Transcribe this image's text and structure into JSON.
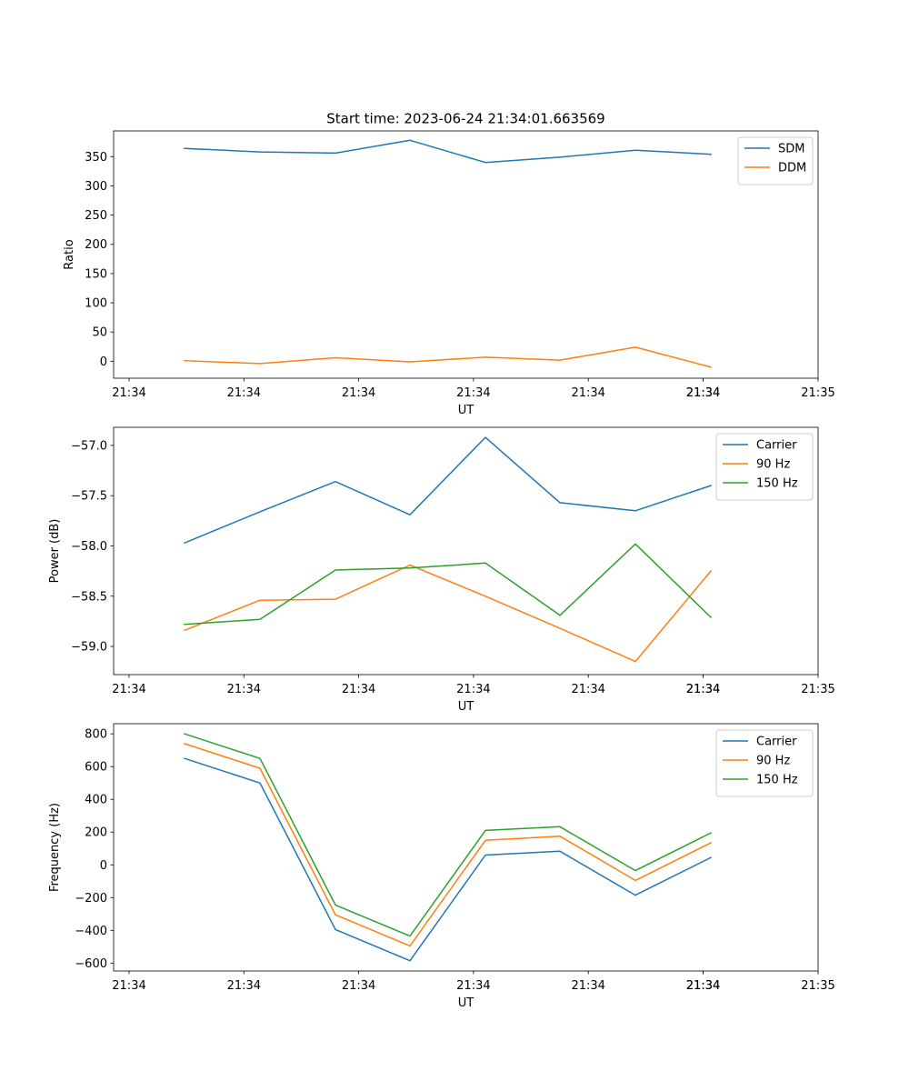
{
  "figure": {
    "title": "Start time: 2023-06-24 21:34:01.663569"
  },
  "colors": {
    "blue": "#1f77b4",
    "orange": "#ff7f0e",
    "green": "#2ca02c",
    "axes": "#000000",
    "legend_border": "#cccccc"
  },
  "x_axis": {
    "label": "UT",
    "tick_labels": [
      "21:34",
      "21:34",
      "21:34",
      "21:34",
      "21:34",
      "21:34",
      "21:34",
      "21:35"
    ]
  },
  "chart_data": [
    {
      "type": "line",
      "name": "ratio",
      "xlabel": "UT",
      "ylabel": "Ratio",
      "x_tick_labels": [
        "21:34",
        "21:34",
        "21:34",
        "21:34",
        "21:34",
        "21:34",
        "21:34",
        "21:35"
      ],
      "y_ticks": [
        0,
        50,
        100,
        150,
        200,
        250,
        300,
        350
      ],
      "y_tick_labels": [
        "0",
        "50",
        "100",
        "150",
        "200",
        "250",
        "300",
        "350"
      ],
      "ylim": [
        -29,
        394
      ],
      "legend_position": "top-right",
      "grid": false,
      "series": [
        {
          "name": "SDM",
          "color": "#1f77b4",
          "values": [
            364,
            358,
            356,
            378,
            340,
            349,
            361,
            354
          ]
        },
        {
          "name": "DDM",
          "color": "#ff7f0e",
          "values": [
            1,
            -4,
            6,
            -1,
            7,
            2,
            24,
            -10
          ]
        }
      ]
    },
    {
      "type": "line",
      "name": "power",
      "xlabel": "UT",
      "ylabel": "Power (dB)",
      "x_tick_labels": [
        "21:34",
        "21:34",
        "21:34",
        "21:34",
        "21:34",
        "21:34",
        "21:34",
        "21:35"
      ],
      "y_ticks": [
        -57.0,
        -57.5,
        -58.0,
        -58.5,
        -59.0
      ],
      "y_tick_labels": [
        "−57.0",
        "−57.5",
        "−58.0",
        "−58.5",
        "−59.0"
      ],
      "ylim": [
        -59.28,
        -56.82
      ],
      "legend_position": "top-right",
      "grid": false,
      "series": [
        {
          "name": "Carrier",
          "color": "#1f77b4",
          "values": [
            -57.97,
            -57.66,
            -57.36,
            -57.69,
            -56.92,
            -57.57,
            -57.65,
            -57.4
          ]
        },
        {
          "name": "90 Hz",
          "color": "#ff7f0e",
          "values": [
            -58.84,
            -58.54,
            -58.53,
            -58.19,
            -58.5,
            -58.82,
            -59.15,
            -58.25
          ]
        },
        {
          "name": "150 Hz",
          "color": "#2ca02c",
          "values": [
            -58.78,
            -58.73,
            -58.24,
            -58.22,
            -58.17,
            -58.69,
            -57.98,
            -58.71
          ]
        }
      ]
    },
    {
      "type": "line",
      "name": "frequency",
      "xlabel": "UT",
      "ylabel": "Frequency (Hz)",
      "x_tick_labels": [
        "21:34",
        "21:34",
        "21:34",
        "21:34",
        "21:34",
        "21:34",
        "21:34",
        "21:35"
      ],
      "y_ticks": [
        800,
        600,
        400,
        200,
        0,
        -200,
        -400,
        -600
      ],
      "y_tick_labels": [
        "800",
        "600",
        "400",
        "200",
        "0",
        "−200",
        "−400",
        "−600"
      ],
      "ylim": [
        -648,
        862
      ],
      "legend_position": "top-right",
      "grid": false,
      "series": [
        {
          "name": "Carrier",
          "color": "#1f77b4",
          "values": [
            650,
            500,
            -395,
            -585,
            60,
            83,
            -185,
            45
          ]
        },
        {
          "name": "90 Hz",
          "color": "#ff7f0e",
          "values": [
            740,
            590,
            -305,
            -495,
            150,
            175,
            -95,
            135
          ]
        },
        {
          "name": "150 Hz",
          "color": "#2ca02c",
          "values": [
            800,
            650,
            -245,
            -435,
            210,
            233,
            -35,
            195
          ]
        }
      ]
    }
  ]
}
